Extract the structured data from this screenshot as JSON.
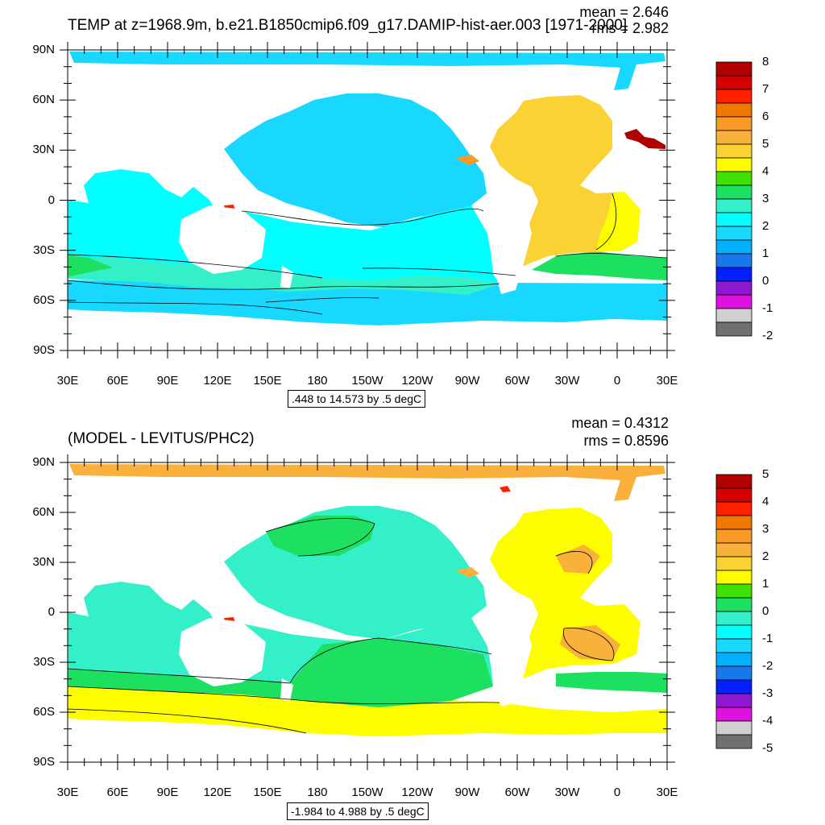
{
  "panels": [
    {
      "title": "TEMP at z=1968.9m, b.e21.B1850cmip6.f09_g17.DAMIP-hist-aer.003 [1971-2000]",
      "mean_text": "mean = 2.646",
      "rms_text": "rms = 2.982",
      "info_text": ".448 to 14.573 by .5 degC",
      "colorbar_labels": [
        "8",
        "7",
        "6",
        "5",
        "4",
        "3",
        "2",
        "1",
        "0",
        "-1",
        "-2"
      ]
    },
    {
      "title": "(MODEL - LEVITUS/PHC2)",
      "mean_text": "mean = 0.4312",
      "rms_text": "rms = 0.8596",
      "info_text": "-1.984 to 4.988 by .5 degC",
      "colorbar_labels": [
        "5",
        "4",
        "3",
        "2",
        "1",
        "0",
        "-1",
        "-2",
        "-3",
        "-4",
        "-5"
      ]
    }
  ],
  "axes": {
    "x_ticks": [
      "30E",
      "60E",
      "90E",
      "120E",
      "150E",
      "180",
      "150W",
      "120W",
      "90W",
      "60W",
      "30W",
      "0",
      "30E"
    ],
    "y_ticks": [
      "90N",
      "60N",
      "30N",
      "0",
      "30S",
      "60S",
      "90S"
    ]
  },
  "colorbar_colors": [
    "#b00000",
    "#d60000",
    "#ff2000",
    "#f07800",
    "#f89a28",
    "#fab13c",
    "#fbd233",
    "#fdfd00",
    "#40e000",
    "#1ee060",
    "#33f0c8",
    "#00ffff",
    "#18d8ff",
    "#00b0ff",
    "#1878e8",
    "#0020ff",
    "#8c18d0",
    "#e010e0",
    "#d0d0d0",
    "#707070"
  ],
  "chart_data": [
    {
      "type": "heatmap",
      "title": "TEMP at z=1968.9m, b.e21.B1850cmip6.f09_g17.DAMIP-hist-aer.003 [1971-2000]",
      "xlim": [
        30,
        390
      ],
      "ylim": [
        -90,
        90
      ],
      "mean": 2.646,
      "rms": 2.982,
      "contour_min": 0.448,
      "contour_max": 14.573,
      "contour_interval": 0.5,
      "units": "degC",
      "colorbar_levels": [
        -2,
        -1.5,
        -1,
        -0.5,
        0,
        0.5,
        1,
        1.5,
        2,
        2.5,
        3,
        3.5,
        4,
        4.5,
        5,
        5.5,
        6,
        6.5,
        7,
        7.5,
        8
      ]
    },
    {
      "type": "heatmap",
      "title": "(MODEL - LEVITUS/PHC2)",
      "xlim": [
        30,
        390
      ],
      "ylim": [
        -90,
        90
      ],
      "mean": 0.4312,
      "rms": 0.8596,
      "contour_min": -1.984,
      "contour_max": 4.988,
      "contour_interval": 0.5,
      "units": "degC",
      "colorbar_levels": [
        -5,
        -4.5,
        -4,
        -3.5,
        -3,
        -2.5,
        -2,
        -1.5,
        -1,
        -0.5,
        0,
        0.5,
        1,
        1.5,
        2,
        2.5,
        3,
        3.5,
        4,
        4.5,
        5
      ]
    }
  ]
}
